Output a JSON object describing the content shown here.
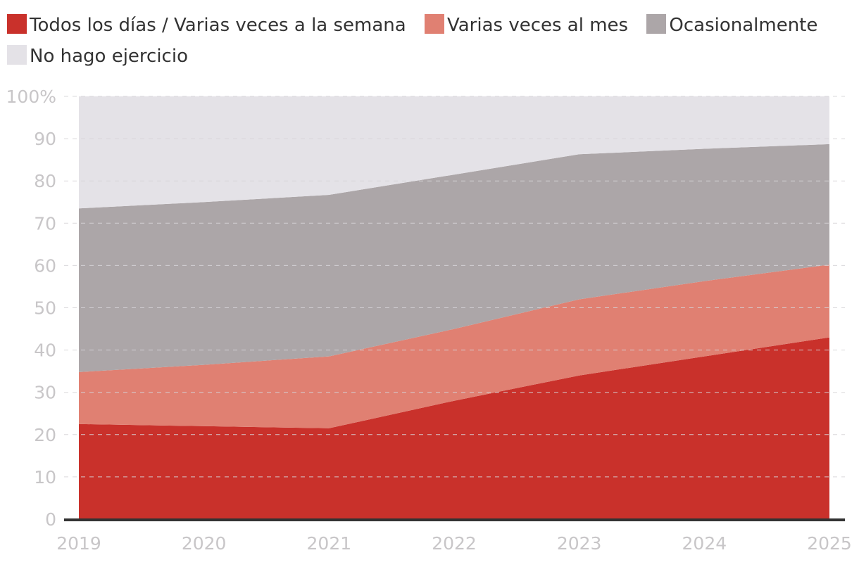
{
  "chart_data": {
    "type": "area",
    "stacked": true,
    "percent": true,
    "categories": [
      "2019",
      "2020",
      "2021",
      "2022",
      "2023",
      "2024",
      "2025"
    ],
    "series": [
      {
        "name": "Todos los días / Varias veces a la semana",
        "color": "#c9312b",
        "values": [
          22.5,
          22.0,
          21.5,
          28.0,
          34.0,
          38.5,
          43.0
        ]
      },
      {
        "name": "Varias veces al mes",
        "color": "#e08072",
        "values": [
          12.3,
          14.5,
          17.0,
          17.0,
          18.0,
          17.8,
          17.2
        ]
      },
      {
        "name": "Ocasionalmente",
        "color": "#aca6a8",
        "values": [
          38.7,
          38.5,
          38.2,
          36.5,
          34.3,
          31.3,
          28.5
        ]
      },
      {
        "name": "No hago ejercicio",
        "color": "#e4e2e7",
        "values": [
          26.5,
          25.0,
          23.3,
          18.5,
          13.7,
          12.4,
          11.3
        ]
      }
    ],
    "ylim": [
      0,
      100
    ],
    "yticks": [
      0,
      10,
      20,
      30,
      40,
      50,
      60,
      70,
      80,
      90,
      100
    ],
    "ytick_labels": [
      "0",
      "10",
      "20",
      "30",
      "40",
      "50",
      "60",
      "70",
      "80",
      "90",
      "100%"
    ],
    "xlabel": "",
    "ylabel": "",
    "grid": true,
    "legend_position": "top"
  }
}
